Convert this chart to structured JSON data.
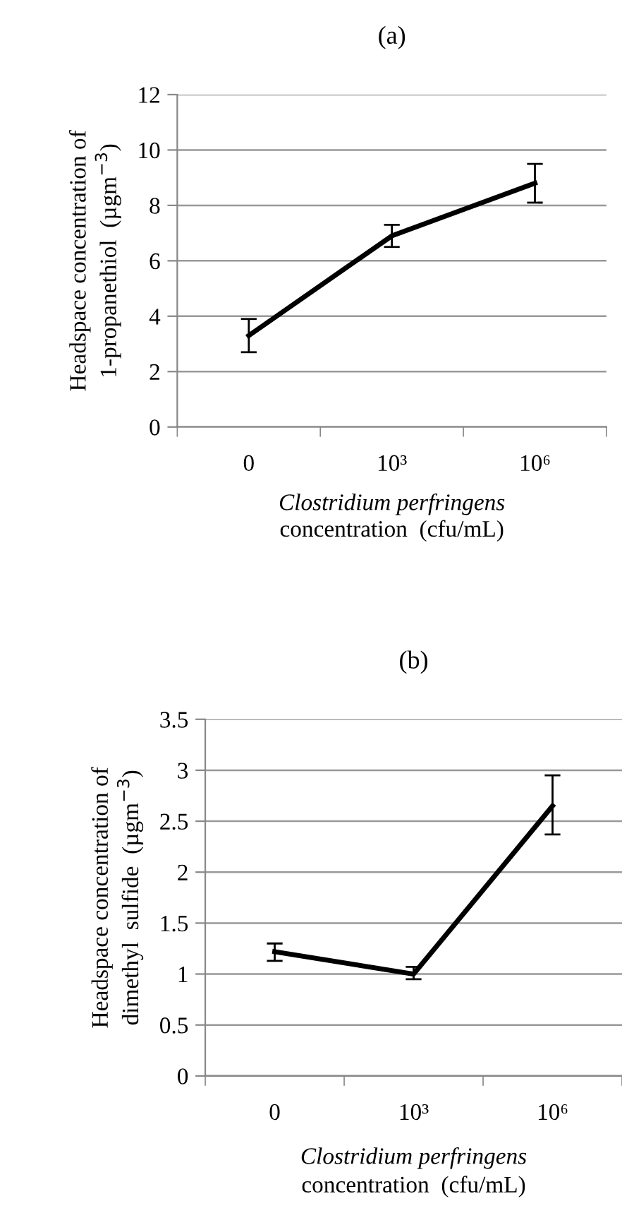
{
  "chart_data": [
    {
      "type": "line",
      "title": "(a)",
      "categories": [
        "0",
        "10³",
        "10⁶"
      ],
      "xlabel": "Clostridium perfringens\nconcentration  (cfu/mL)",
      "ylabel": "Headspace concentration of\n1-propanethiol  (µgm$^{−3}$)",
      "series": [
        {
          "color": "#000000",
          "values": [
            3.3,
            6.9,
            8.8
          ],
          "errors": [
            [
              2.7,
              3.9
            ],
            [
              6.5,
              7.3
            ],
            [
              8.1,
              9.5
            ]
          ]
        }
      ],
      "ylim": [
        0,
        12
      ],
      "yticks": [
        0,
        2,
        4,
        6,
        8,
        10,
        12
      ],
      "grid": "y",
      "marker": "none",
      "line_style": "solid"
    },
    {
      "type": "line",
      "title": "(b)",
      "categories": [
        "0",
        "10³",
        "10⁶"
      ],
      "xlabel": "Clostridium perfringens\nconcentration  (cfu/mL)",
      "ylabel": "Headspace concentration of\ndimethyl  sulfide  (µgm$^{−3}$)",
      "series": [
        {
          "color": "#000000",
          "values": [
            1.22,
            1.0,
            2.65
          ],
          "errors": [
            [
              1.13,
              1.3
            ],
            [
              0.95,
              1.07
            ],
            [
              2.37,
              2.95
            ]
          ]
        }
      ],
      "ylim": [
        0,
        3.5
      ],
      "yticks": [
        0,
        0.5,
        1,
        1.5,
        2,
        2.5,
        3,
        3.5
      ],
      "grid": "y",
      "marker": "none",
      "line_style": "solid"
    }
  ]
}
